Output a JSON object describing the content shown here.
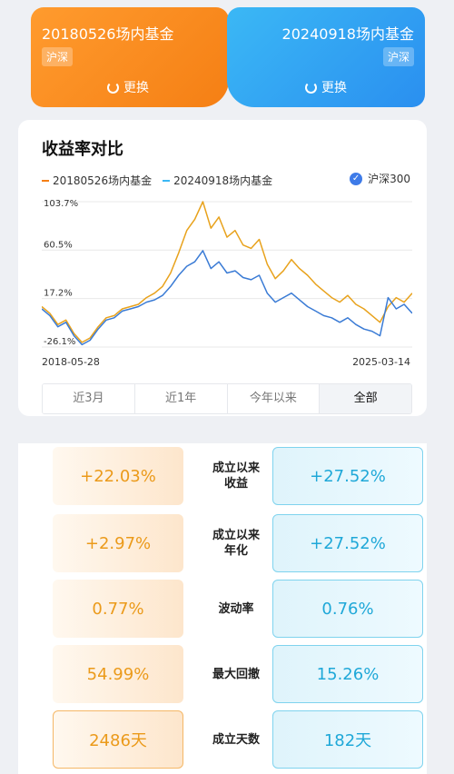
{
  "funds": {
    "left": {
      "name": "20180526场内基金",
      "tag": "沪深",
      "swap_label": "更换",
      "color": "#f57f14"
    },
    "right": {
      "name": "20240918场内基金",
      "tag": "沪深",
      "swap_label": "更换",
      "color": "#2a8ff0"
    }
  },
  "comparison": {
    "title": "收益率对比",
    "legend": [
      "20180526场内基金",
      "20240918场内基金"
    ],
    "benchmark_label": "沪深300",
    "benchmark_checked": true,
    "date_start": "2018-05-28",
    "date_end": "2025-03-14",
    "range_tabs": [
      "近3月",
      "近1年",
      "今年以来",
      "全部"
    ],
    "active_range": "全部"
  },
  "chart_data": {
    "type": "line",
    "y_ticks": [
      "103.7%",
      "60.5%",
      "17.2%",
      "-26.1%"
    ],
    "ylim": [
      -26.1,
      103.7
    ],
    "x_range": [
      "2018-05-28",
      "2025-03-14"
    ],
    "grid": true,
    "series": [
      {
        "name": "20180526场内基金",
        "color": "#e8a21c",
        "values": [
          10,
          4,
          -6,
          -2,
          -14,
          -22,
          -18,
          -8,
          0,
          2,
          8,
          10,
          12,
          18,
          22,
          28,
          40,
          58,
          78,
          88,
          103.7,
          80,
          90,
          72,
          78,
          65,
          62,
          70,
          48,
          35,
          42,
          52,
          44,
          38,
          30,
          24,
          18,
          14,
          20,
          12,
          8,
          2,
          -4,
          10,
          18,
          14,
          22
        ]
      },
      {
        "name": "20240918场内基金",
        "color": "#3a7bd5",
        "values": [
          8,
          2,
          -8,
          -4,
          -16,
          -24,
          -20,
          -10,
          -2,
          0,
          6,
          8,
          10,
          14,
          16,
          20,
          28,
          38,
          46,
          50,
          60,
          44,
          50,
          40,
          42,
          36,
          34,
          38,
          22,
          14,
          18,
          22,
          16,
          10,
          6,
          2,
          0,
          -4,
          0,
          -6,
          -10,
          -12,
          -16,
          18,
          8,
          12,
          4
        ]
      }
    ]
  },
  "metrics": [
    {
      "left": "+22.03%",
      "label": [
        "成立以来",
        "收益"
      ],
      "right": "+27.52%"
    },
    {
      "left": "+2.97%",
      "label": [
        "成立以来",
        "年化"
      ],
      "right": "+27.52%"
    },
    {
      "left": "0.77%",
      "label": [
        "波动率"
      ],
      "right": "0.76%"
    },
    {
      "left": "54.99%",
      "label": [
        "最大回撤"
      ],
      "right": "15.26%"
    },
    {
      "left": "2486天",
      "label": [
        "成立天数"
      ],
      "right": "182天"
    }
  ]
}
